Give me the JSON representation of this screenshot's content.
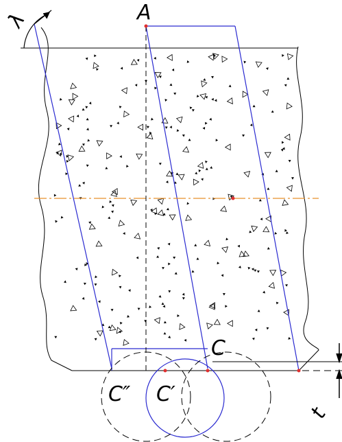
{
  "labels": {
    "angle": "λ",
    "point_a": "A",
    "point_c": "C",
    "point_c_double": "C″",
    "point_c_single": "C′",
    "thickness": "t"
  }
}
